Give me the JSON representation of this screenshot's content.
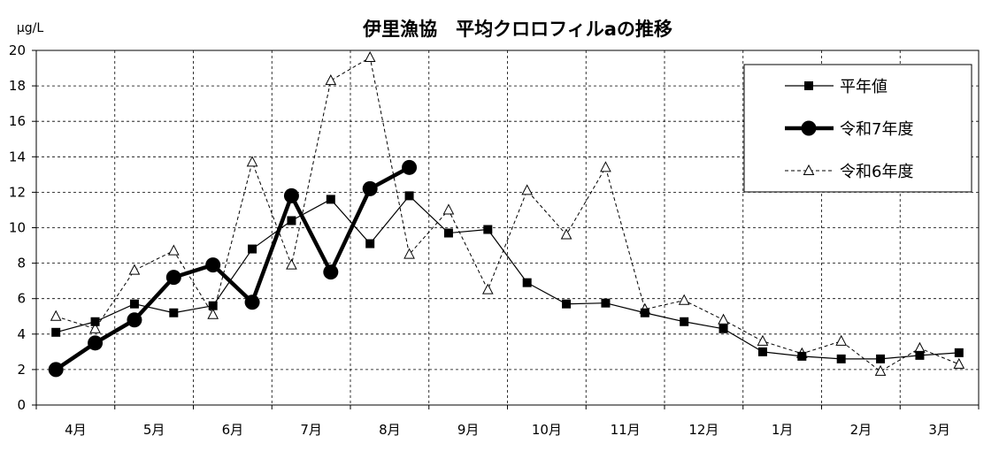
{
  "chart_data": {
    "type": "line",
    "title": "伊里漁協　平均クロロフィルaの推移",
    "ylabel": "μg/L",
    "xlabel": "",
    "ylim": [
      0,
      20
    ],
    "yticks": [
      0,
      2,
      4,
      6,
      8,
      10,
      12,
      14,
      16,
      18,
      20
    ],
    "month_labels": [
      "4月",
      "5月",
      "6月",
      "7月",
      "8月",
      "9月",
      "10月",
      "11月",
      "12月",
      "1月",
      "2月",
      "3月"
    ],
    "points_per_month": 2,
    "grid": true,
    "legend_position": "top-right",
    "series": [
      {
        "name": "平年値",
        "style": "thin-solid-square",
        "color": "#000000",
        "values": [
          4.1,
          4.7,
          5.7,
          5.2,
          5.6,
          8.8,
          10.4,
          11.6,
          9.1,
          11.8,
          9.7,
          9.9,
          6.9,
          5.7,
          5.75,
          5.2,
          4.7,
          4.3,
          3.0,
          2.75,
          2.6,
          2.6,
          2.8,
          2.95
        ]
      },
      {
        "name": "令和7年度",
        "style": "thick-solid-circle",
        "color": "#000000",
        "values": [
          2.0,
          3.5,
          4.8,
          7.2,
          7.9,
          5.8,
          11.8,
          7.5,
          12.2,
          13.4,
          null,
          null,
          null,
          null,
          null,
          null,
          null,
          null,
          null,
          null,
          null,
          null,
          null,
          null
        ]
      },
      {
        "name": "令和6年度",
        "style": "dashed-triangle",
        "color": "#000000",
        "values": [
          5.0,
          4.3,
          7.6,
          8.7,
          5.1,
          13.7,
          7.9,
          18.3,
          19.6,
          8.5,
          11.0,
          6.5,
          12.1,
          9.6,
          13.4,
          5.4,
          5.9,
          4.8,
          3.6,
          2.9,
          3.6,
          1.9,
          3.2,
          2.3
        ]
      }
    ]
  }
}
